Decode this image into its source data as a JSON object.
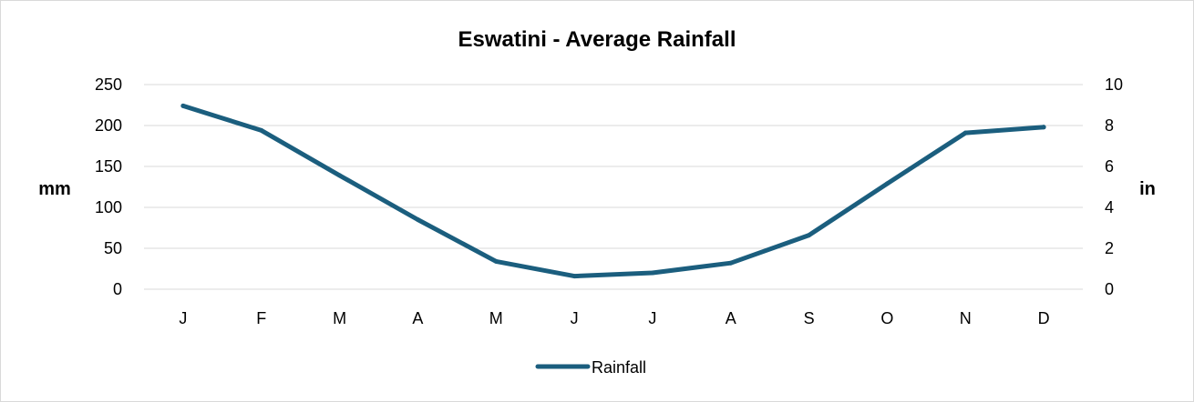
{
  "chart_data": {
    "type": "line",
    "title": "Eswatini - Average Rainfall",
    "ylabel": "mm",
    "y2label": "in",
    "categories": [
      "J",
      "F",
      "M",
      "A",
      "M",
      "J",
      "J",
      "A",
      "S",
      "O",
      "N",
      "D"
    ],
    "series": [
      {
        "name": "Rainfall",
        "values": [
          224,
          194,
          139,
          85,
          34,
          16,
          20,
          32,
          66,
          129,
          191,
          198
        ]
      }
    ],
    "ylim": [
      0,
      250
    ],
    "yticks": [
      "0",
      "50",
      "100",
      "150",
      "200",
      "250"
    ],
    "y2lim": [
      0,
      10
    ],
    "y2ticks": [
      "0",
      "2",
      "4",
      "6",
      "8",
      "10"
    ],
    "grid": true,
    "legend_position": "bottom",
    "line_color": "#1b5e7e",
    "grid_color": "#d9d9d9"
  }
}
